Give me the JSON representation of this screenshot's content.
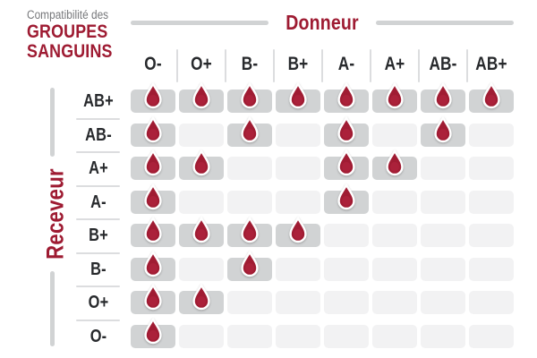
{
  "title": {
    "prefix": "Compatibilité des",
    "line1": "GROUPES",
    "line2": "SANGUINS"
  },
  "axes": {
    "donor": "Donneur",
    "receiver": "Receveur"
  },
  "icons": {
    "compatible_marker": "blood-drop-icon"
  },
  "chart_data": {
    "type": "heatmap",
    "title": "Compatibilité des GROUPES SANGUINS",
    "x_axis_label": "Donneur",
    "y_axis_label": "Receveur",
    "columns": [
      "O-",
      "O+",
      "B-",
      "B+",
      "A-",
      "A+",
      "AB-",
      "AB+"
    ],
    "rows": [
      "AB+",
      "AB-",
      "A+",
      "A-",
      "B+",
      "B-",
      "O+",
      "O-"
    ],
    "values": [
      [
        1,
        1,
        1,
        1,
        1,
        1,
        1,
        1
      ],
      [
        1,
        0,
        1,
        0,
        1,
        0,
        1,
        0
      ],
      [
        1,
        1,
        0,
        0,
        1,
        1,
        0,
        0
      ],
      [
        1,
        0,
        0,
        0,
        1,
        0,
        0,
        0
      ],
      [
        1,
        1,
        1,
        1,
        0,
        0,
        0,
        0
      ],
      [
        1,
        0,
        1,
        0,
        0,
        0,
        0,
        0
      ],
      [
        1,
        1,
        0,
        0,
        0,
        0,
        0,
        0
      ],
      [
        1,
        0,
        0,
        0,
        0,
        0,
        0,
        0
      ]
    ],
    "marker_meaning": "compatible"
  },
  "colors": {
    "accent_red": "#9e1b32",
    "drop_red": "#a01c33",
    "drop_highlight": "#b82943",
    "text_dark": "#27292c",
    "text_gray": "#77787b",
    "cell_filled": "#d1d3d4",
    "cell_empty": "#f2f2f3",
    "divider": "#dcdddf",
    "line_gray": "#d1d3d4"
  }
}
